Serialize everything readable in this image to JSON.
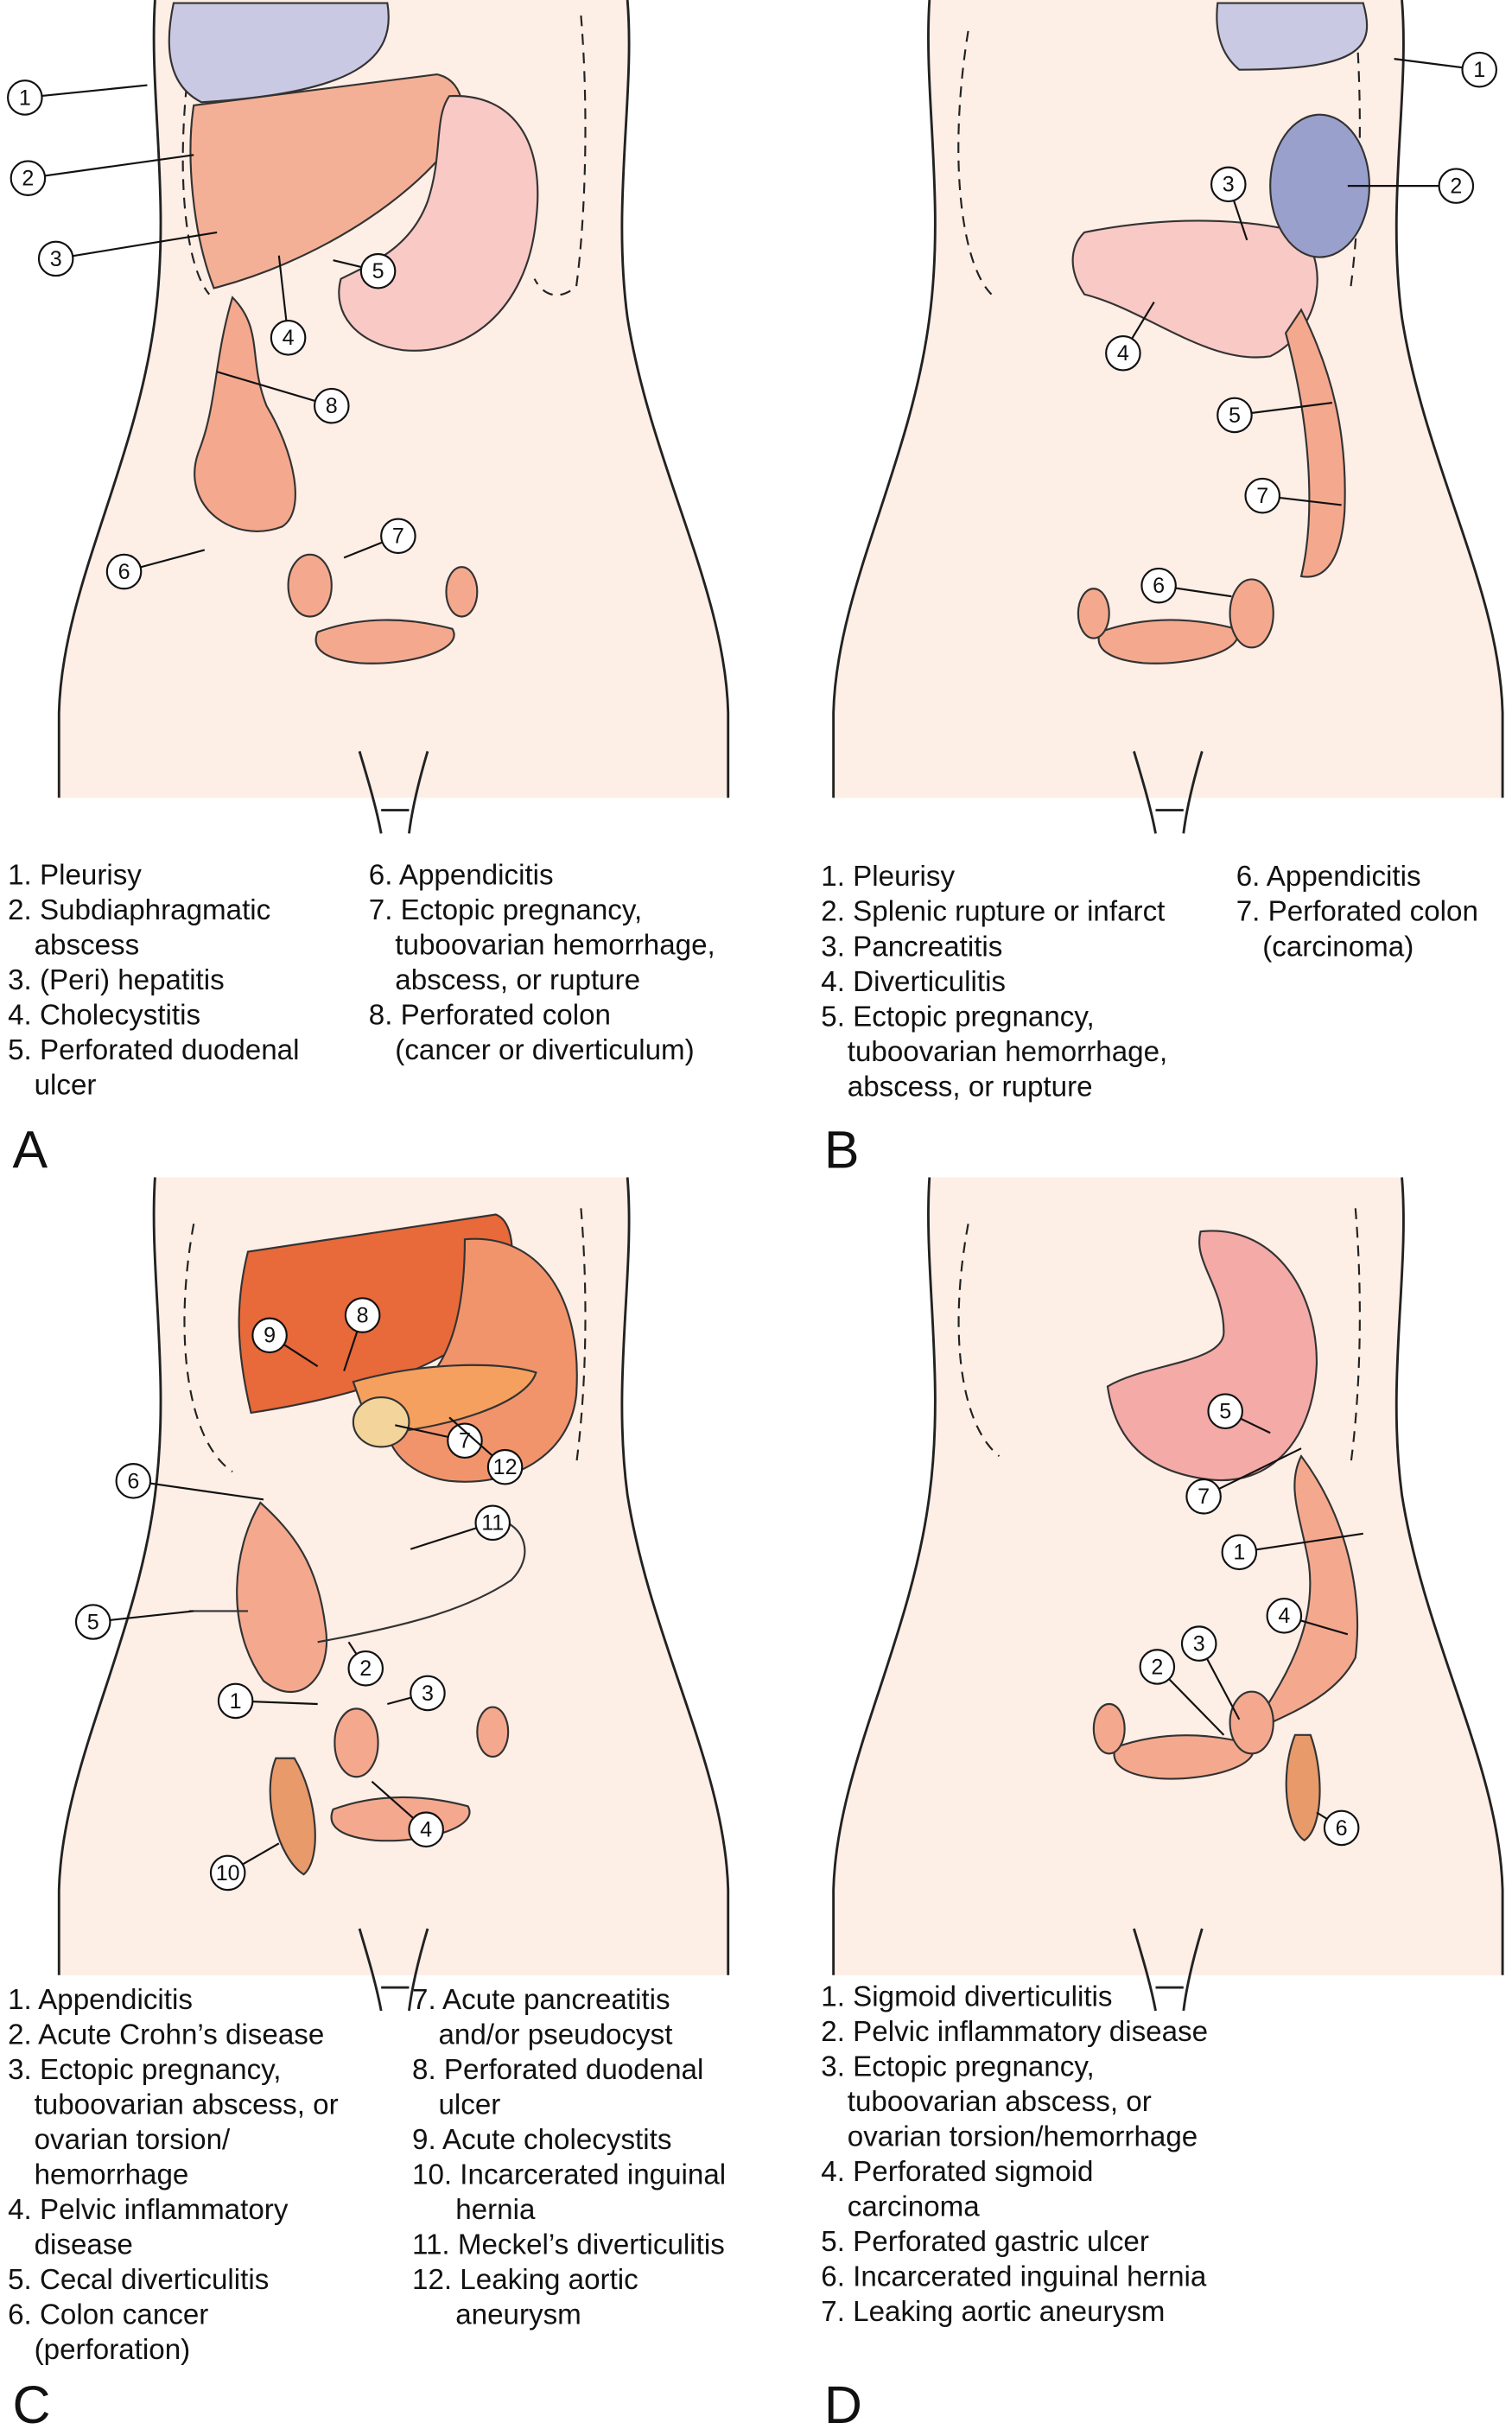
{
  "panels": [
    {
      "letter": "A",
      "callouts": [
        "1",
        "2",
        "3",
        "4",
        "5",
        "8",
        "6",
        "7"
      ],
      "legend": [
        [
          [
            "1. Pleurisy"
          ],
          [
            "2. Subdiaphragmatic",
            "abscess"
          ],
          [
            "3. (Peri) hepatitis"
          ],
          [
            "4. Cholecystitis"
          ],
          [
            "5. Perforated duodenal",
            "ulcer"
          ]
        ],
        [
          [
            "6. Appendicitis"
          ],
          [
            "7. Ectopic pregnancy,",
            "tuboovarian hemorrhage,",
            "abscess, or rupture"
          ],
          [
            "8. Perforated colon",
            "(cancer or diverticulum)"
          ]
        ]
      ]
    },
    {
      "letter": "B",
      "callouts": [
        "1",
        "2",
        "3",
        "4",
        "5",
        "7",
        "6"
      ],
      "legend": [
        [
          [
            "1. Pleurisy"
          ],
          [
            "2. Splenic rupture or infarct"
          ],
          [
            "3. Pancreatitis"
          ],
          [
            "4. Diverticulitis"
          ],
          [
            "5. Ectopic pregnancy,",
            "tuboovarian hemorrhage,",
            "abscess, or rupture"
          ]
        ],
        [
          [
            "6. Appendicitis"
          ],
          [
            "7. Perforated colon",
            "(carcinoma)"
          ]
        ]
      ]
    },
    {
      "letter": "C",
      "callouts": [
        "9",
        "8",
        "7",
        "12",
        "6",
        "11",
        "5",
        "2",
        "3",
        "1",
        "4",
        "10"
      ],
      "legend": [
        [
          [
            "1. Appendicitis"
          ],
          [
            "2. Acute Crohn’s disease"
          ],
          [
            "3. Ectopic pregnancy,",
            "tuboovarian abscess, or",
            "ovarian torsion/",
            "hemorrhage"
          ],
          [
            "4. Pelvic inflammatory",
            "disease"
          ],
          [
            "5. Cecal diverticulitis"
          ],
          [
            "6. Colon cancer",
            "(perforation)"
          ]
        ],
        [
          [
            "7. Acute pancreatitis",
            "and/or pseudocyst"
          ],
          [
            "8. Perforated duodenal",
            "ulcer"
          ],
          [
            "9. Acute cholecystits"
          ],
          [
            "10. Incarcerated inguinal",
            "hernia"
          ],
          [
            "11. Meckel’s diverticulitis"
          ],
          [
            "12. Leaking aortic",
            "aneurysm"
          ]
        ]
      ]
    },
    {
      "letter": "D",
      "callouts": [
        "5",
        "7",
        "1",
        "4",
        "3",
        "2",
        "6"
      ],
      "legend": [
        [
          [
            "1. Sigmoid diverticulitis"
          ],
          [
            "2. Pelvic inflammatory disease"
          ],
          [
            "3. Ectopic pregnancy,",
            "tuboovarian abscess, or",
            "ovarian torsion/hemorrhage"
          ],
          [
            "4. Perforated sigmoid",
            "carcinoma"
          ],
          [
            "5. Perforated gastric ulcer"
          ],
          [
            "6. Incarcerated inguinal hernia"
          ],
          [
            "7. Leaking aortic aneurysm"
          ]
        ]
      ]
    }
  ]
}
